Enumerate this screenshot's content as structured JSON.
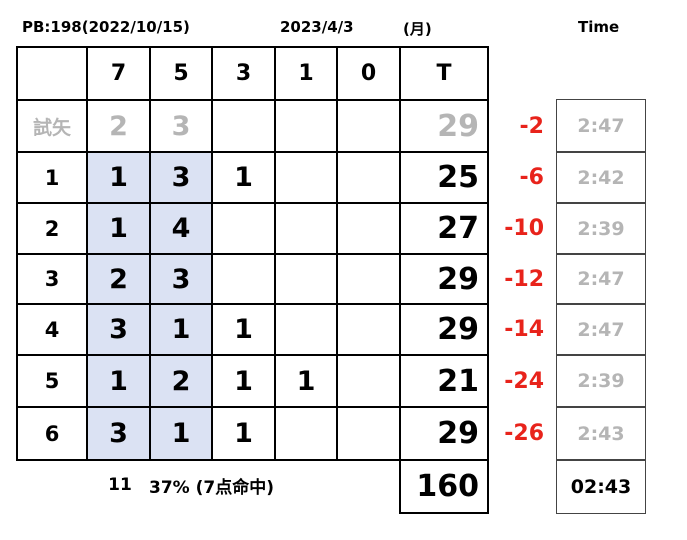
{
  "header": {
    "pb": "PB:198(2022/10/15)",
    "date": "2023/4/3",
    "weekday": "(月)",
    "time_label": "Time"
  },
  "table": {
    "columns": [
      null,
      "7",
      "5",
      "3",
      "1",
      "0",
      "T"
    ],
    "rows": [
      {
        "label": "試矢",
        "counts": [
          "2",
          "3",
          null,
          null,
          null
        ],
        "total": "29",
        "diff": "-2",
        "time": "2:47"
      },
      {
        "label": "1",
        "counts": [
          "1",
          "3",
          "1",
          null,
          null
        ],
        "total": "25",
        "diff": "-6",
        "time": "2:42"
      },
      {
        "label": "2",
        "counts": [
          "1",
          "4",
          null,
          null,
          null
        ],
        "total": "27",
        "diff": "-10",
        "time": "2:39"
      },
      {
        "label": "3",
        "counts": [
          "2",
          "3",
          null,
          null,
          null
        ],
        "total": "29",
        "diff": "-12",
        "time": "2:47"
      },
      {
        "label": "4",
        "counts": [
          "3",
          "1",
          "1",
          null,
          null
        ],
        "total": "29",
        "diff": "-14",
        "time": "2:47"
      },
      {
        "label": "5",
        "counts": [
          "1",
          "2",
          "1",
          "1",
          null
        ],
        "total": "21",
        "diff": "-24",
        "time": "2:39"
      },
      {
        "label": "6",
        "counts": [
          "3",
          "1",
          "1",
          null,
          null
        ],
        "total": "29",
        "diff": "-26",
        "time": "2:43"
      }
    ]
  },
  "footer": {
    "hits": "11",
    "rate": "37% (7点命中)",
    "total": "160",
    "time": "02:43"
  }
}
